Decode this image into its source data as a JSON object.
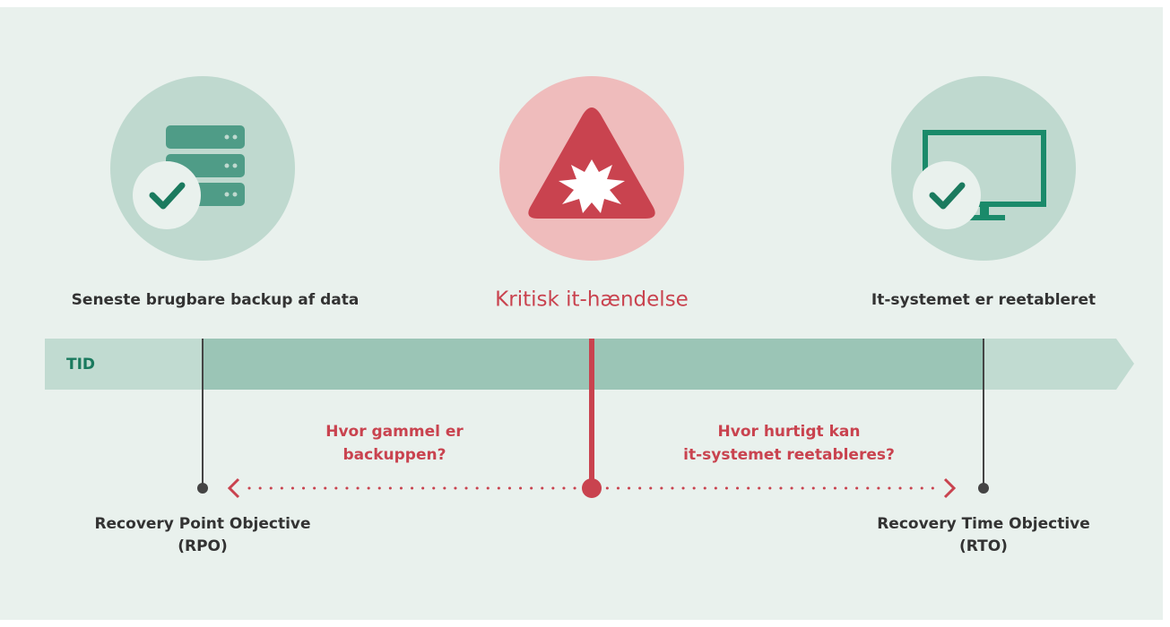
{
  "events": [
    {
      "label": "Seneste brugbare backup af data"
    },
    {
      "label": "Kritisk it-hændelse"
    },
    {
      "label": "It-systemet er reetableret"
    }
  ],
  "timeline_label": "TID",
  "questions": [
    {
      "lines": [
        "Hvor gammel er",
        "backuppen?"
      ]
    },
    {
      "lines": [
        "Hvor hurtigt kan",
        "it-systemet reetableres?"
      ]
    }
  ],
  "objectives": [
    {
      "lines": [
        "Recovery Point Objective",
        "(RPO)"
      ]
    },
    {
      "lines": [
        "Recovery Time Objective",
        "(RTO)"
      ]
    }
  ]
}
